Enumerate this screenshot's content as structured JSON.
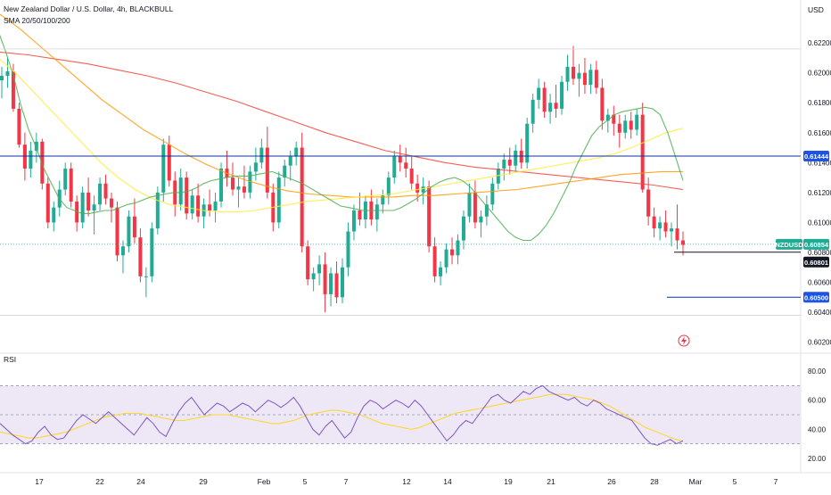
{
  "header": {
    "symbol_title": "New Zealand Dollar / U.S. Dollar, 4h, BLACKBULL",
    "indicator": "SMA 20/50/100/200",
    "currency": "USD",
    "rsi_label": "RSI"
  },
  "colors": {
    "up": "#22ab94",
    "down": "#f23645",
    "sma20": "#4caf50",
    "sma50": "#ffeb3b",
    "sma100": "#ff9800",
    "sma200": "#f44336",
    "hline": "#0c3299",
    "rsi_line": "#7e57c2",
    "rsi_ma": "#fdd835",
    "rsi_band": "#ede7f6",
    "badge_blue": "#1e53e5",
    "badge_green": "#22ab94",
    "badge_dark": "#131722"
  },
  "price_axis": {
    "ticks": [
      "0.62200",
      "0.62000",
      "0.61800",
      "0.61600",
      "0.61400",
      "0.61200",
      "0.61000",
      "0.60800",
      "0.60600",
      "0.60400",
      "0.60200"
    ],
    "badges": [
      {
        "text": "0.61444",
        "style": "blue",
        "value": 0.61444
      },
      {
        "text": "NZDUSD",
        "style": "green",
        "value": 0.60854
      },
      {
        "text": "0.60854",
        "style": "green",
        "value": 0.60854
      },
      {
        "text": "0.60801",
        "style": "dark",
        "value": 0.60801
      },
      {
        "text": "0.60500",
        "style": "blue",
        "value": 0.605
      }
    ]
  },
  "rsi_axis": {
    "ticks": [
      "80.00",
      "60.00",
      "40.00",
      "20.00"
    ]
  },
  "time_axis": {
    "ticks": [
      "17",
      "22",
      "24",
      "29",
      "Feb",
      "5",
      "7",
      "12",
      "14",
      "19",
      "21",
      "26",
      "28",
      "Mar",
      "5",
      "7"
    ]
  },
  "chart_data": {
    "type": "candlestick",
    "symbol": "NZDUSD",
    "timeframe": "4h",
    "price_range": [
      0.6015,
      0.6232
    ],
    "rsi_range": [
      15,
      85
    ],
    "rsi_levels": [
      70,
      50,
      30
    ],
    "horizontal_lines": [
      0.61444,
      0.605,
      0.60801
    ],
    "ohlc": [
      [
        0.6195,
        0.6204,
        0.6183,
        0.6198
      ],
      [
        0.6198,
        0.621,
        0.619,
        0.6201
      ],
      [
        0.6201,
        0.6206,
        0.6174,
        0.6176
      ],
      [
        0.6176,
        0.618,
        0.615,
        0.6152
      ],
      [
        0.6152,
        0.616,
        0.6128,
        0.6136
      ],
      [
        0.6136,
        0.6154,
        0.613,
        0.6148
      ],
      [
        0.6148,
        0.616,
        0.614,
        0.6154
      ],
      [
        0.6154,
        0.6156,
        0.6122,
        0.6126
      ],
      [
        0.6126,
        0.613,
        0.6096,
        0.61
      ],
      [
        0.61,
        0.6114,
        0.6094,
        0.611
      ],
      [
        0.611,
        0.6128,
        0.6104,
        0.6122
      ],
      [
        0.6122,
        0.614,
        0.6118,
        0.6136
      ],
      [
        0.6136,
        0.614,
        0.611,
        0.6114
      ],
      [
        0.6114,
        0.6118,
        0.6094,
        0.61
      ],
      [
        0.61,
        0.6124,
        0.6096,
        0.612
      ],
      [
        0.612,
        0.613,
        0.6104,
        0.6108
      ],
      [
        0.6108,
        0.6118,
        0.6092,
        0.6112
      ],
      [
        0.6112,
        0.613,
        0.6108,
        0.6126
      ],
      [
        0.6126,
        0.6132,
        0.6112,
        0.6116
      ],
      [
        0.6116,
        0.612,
        0.61,
        0.611
      ],
      [
        0.611,
        0.6114,
        0.6074,
        0.6078
      ],
      [
        0.6078,
        0.6088,
        0.6066,
        0.6084
      ],
      [
        0.6084,
        0.6108,
        0.608,
        0.6104
      ],
      [
        0.6104,
        0.6116,
        0.6086,
        0.609
      ],
      [
        0.609,
        0.6096,
        0.606,
        0.6064
      ],
      [
        0.6064,
        0.607,
        0.605,
        0.6064
      ],
      [
        0.6064,
        0.61,
        0.606,
        0.6096
      ],
      [
        0.6096,
        0.6124,
        0.6092,
        0.612
      ],
      [
        0.612,
        0.6156,
        0.6114,
        0.6152
      ],
      [
        0.6152,
        0.6158,
        0.6124,
        0.6128
      ],
      [
        0.6128,
        0.6134,
        0.6104,
        0.6112
      ],
      [
        0.6112,
        0.6136,
        0.6108,
        0.613
      ],
      [
        0.613,
        0.6134,
        0.6102,
        0.6106
      ],
      [
        0.6106,
        0.6122,
        0.6102,
        0.6118
      ],
      [
        0.6118,
        0.6126,
        0.61,
        0.6104
      ],
      [
        0.6104,
        0.6116,
        0.6096,
        0.6112
      ],
      [
        0.6112,
        0.6122,
        0.6104,
        0.6108
      ],
      [
        0.6108,
        0.612,
        0.61,
        0.6114
      ],
      [
        0.6114,
        0.614,
        0.611,
        0.6136
      ],
      [
        0.6136,
        0.6148,
        0.6124,
        0.613
      ],
      [
        0.613,
        0.614,
        0.6118,
        0.6122
      ],
      [
        0.6122,
        0.613,
        0.611,
        0.6124
      ],
      [
        0.6124,
        0.6138,
        0.6116,
        0.612
      ],
      [
        0.612,
        0.6138,
        0.6116,
        0.6134
      ],
      [
        0.6134,
        0.615,
        0.6128,
        0.614
      ],
      [
        0.614,
        0.6156,
        0.6136,
        0.615
      ],
      [
        0.615,
        0.6164,
        0.6116,
        0.612
      ],
      [
        0.612,
        0.6126,
        0.6094,
        0.61
      ],
      [
        0.61,
        0.6134,
        0.6096,
        0.613
      ],
      [
        0.613,
        0.6142,
        0.6124,
        0.6138
      ],
      [
        0.6138,
        0.6148,
        0.6128,
        0.6144
      ],
      [
        0.6144,
        0.6154,
        0.6138,
        0.615
      ],
      [
        0.615,
        0.616,
        0.608,
        0.6084
      ],
      [
        0.6084,
        0.6088,
        0.6058,
        0.6062
      ],
      [
        0.6062,
        0.607,
        0.6054,
        0.6066
      ],
      [
        0.6066,
        0.6078,
        0.6058,
        0.6072
      ],
      [
        0.6072,
        0.608,
        0.604,
        0.6052
      ],
      [
        0.6052,
        0.607,
        0.6044,
        0.6066
      ],
      [
        0.6066,
        0.6074,
        0.6046,
        0.605
      ],
      [
        0.605,
        0.6076,
        0.6046,
        0.607
      ],
      [
        0.607,
        0.61,
        0.6064,
        0.6094
      ],
      [
        0.6094,
        0.6112,
        0.6088,
        0.6108
      ],
      [
        0.6108,
        0.612,
        0.6098,
        0.6102
      ],
      [
        0.6102,
        0.6118,
        0.6096,
        0.6114
      ],
      [
        0.6114,
        0.6122,
        0.6098,
        0.6102
      ],
      [
        0.6102,
        0.6116,
        0.6094,
        0.6112
      ],
      [
        0.6112,
        0.6122,
        0.6106,
        0.6118
      ],
      [
        0.6118,
        0.6134,
        0.6112,
        0.613
      ],
      [
        0.613,
        0.6148,
        0.6126,
        0.6144
      ],
      [
        0.6144,
        0.6152,
        0.6134,
        0.614
      ],
      [
        0.614,
        0.615,
        0.613,
        0.6136
      ],
      [
        0.6136,
        0.6144,
        0.6122,
        0.6126
      ],
      [
        0.6126,
        0.6132,
        0.6114,
        0.612
      ],
      [
        0.612,
        0.613,
        0.6112,
        0.6124
      ],
      [
        0.6124,
        0.6128,
        0.608,
        0.6084
      ],
      [
        0.6084,
        0.609,
        0.606,
        0.6064
      ],
      [
        0.6064,
        0.6074,
        0.6058,
        0.607
      ],
      [
        0.607,
        0.6086,
        0.6066,
        0.6082
      ],
      [
        0.6082,
        0.609,
        0.6072,
        0.6078
      ],
      [
        0.6078,
        0.6092,
        0.6072,
        0.6088
      ],
      [
        0.6088,
        0.6108,
        0.6082,
        0.6104
      ],
      [
        0.6104,
        0.6126,
        0.61,
        0.612
      ],
      [
        0.612,
        0.6128,
        0.6096,
        0.61
      ],
      [
        0.61,
        0.6108,
        0.609,
        0.6104
      ],
      [
        0.6104,
        0.6118,
        0.6098,
        0.6112
      ],
      [
        0.6112,
        0.613,
        0.6108,
        0.6126
      ],
      [
        0.6126,
        0.614,
        0.6122,
        0.6136
      ],
      [
        0.6136,
        0.6146,
        0.6128,
        0.6142
      ],
      [
        0.6142,
        0.615,
        0.6132,
        0.6138
      ],
      [
        0.6138,
        0.6152,
        0.6134,
        0.6148
      ],
      [
        0.6148,
        0.6156,
        0.6136,
        0.614
      ],
      [
        0.614,
        0.617,
        0.6136,
        0.6166
      ],
      [
        0.6166,
        0.6186,
        0.616,
        0.6182
      ],
      [
        0.6182,
        0.6196,
        0.6176,
        0.619
      ],
      [
        0.619,
        0.6194,
        0.617,
        0.6174
      ],
      [
        0.6174,
        0.6186,
        0.6166,
        0.618
      ],
      [
        0.618,
        0.6192,
        0.617,
        0.6176
      ],
      [
        0.6176,
        0.6198,
        0.6172,
        0.6194
      ],
      [
        0.6194,
        0.6212,
        0.6188,
        0.6204
      ],
      [
        0.6204,
        0.6218,
        0.6192,
        0.6196
      ],
      [
        0.6196,
        0.6206,
        0.6184,
        0.62
      ],
      [
        0.62,
        0.621,
        0.6186,
        0.6192
      ],
      [
        0.6192,
        0.6206,
        0.6186,
        0.6202
      ],
      [
        0.6202,
        0.6208,
        0.6186,
        0.619
      ],
      [
        0.619,
        0.6196,
        0.6162,
        0.6168
      ],
      [
        0.6168,
        0.6176,
        0.616,
        0.6172
      ],
      [
        0.6172,
        0.6178,
        0.6158,
        0.6166
      ],
      [
        0.6166,
        0.6172,
        0.615,
        0.616
      ],
      [
        0.616,
        0.6172,
        0.6156,
        0.6168
      ],
      [
        0.6168,
        0.6174,
        0.6156,
        0.6162
      ],
      [
        0.6162,
        0.6176,
        0.6158,
        0.6172
      ],
      [
        0.6172,
        0.618,
        0.612,
        0.6122
      ],
      [
        0.6122,
        0.613,
        0.6098,
        0.6104
      ],
      [
        0.6104,
        0.611,
        0.609,
        0.6096
      ],
      [
        0.6096,
        0.6104,
        0.6088,
        0.61
      ],
      [
        0.61,
        0.6108,
        0.609,
        0.6094
      ],
      [
        0.6094,
        0.61,
        0.6084,
        0.6096
      ],
      [
        0.6096,
        0.6112,
        0.6082,
        0.6088
      ],
      [
        0.6088,
        0.6094,
        0.6078,
        0.6085
      ]
    ],
    "sma20": [
      0.6228,
      0.6214,
      0.6198,
      0.6178,
      0.6162,
      0.615,
      0.6136,
      0.6126,
      0.6116,
      0.611,
      0.6108,
      0.6106,
      0.6106,
      0.6107,
      0.6108,
      0.6108,
      0.611,
      0.6112,
      0.6113,
      0.6115,
      0.6117,
      0.6118,
      0.6119,
      0.612,
      0.612,
      0.6121,
      0.6123,
      0.6126,
      0.6128,
      0.6129,
      0.613,
      0.6131,
      0.6131,
      0.6131,
      0.6132,
      0.6133,
      0.6134,
      0.6132,
      0.613,
      0.6128,
      0.6126,
      0.6123,
      0.612,
      0.6117,
      0.6114,
      0.6111,
      0.611,
      0.6109,
      0.6108,
      0.6108,
      0.6108,
      0.6108,
      0.6108,
      0.611,
      0.6113,
      0.6116,
      0.612,
      0.6124,
      0.6127,
      0.6129,
      0.613,
      0.6128,
      0.6124,
      0.6118,
      0.6112,
      0.6106,
      0.61,
      0.6094,
      0.609,
      0.6088,
      0.6088,
      0.6092,
      0.6098,
      0.6106,
      0.6116,
      0.6126,
      0.6138,
      0.6148,
      0.6158,
      0.6164,
      0.6168,
      0.6172,
      0.6174,
      0.6175,
      0.6176,
      0.6177,
      0.6176,
      0.6172,
      0.616,
      0.6144,
      0.6128
    ],
    "sma50": [
      0.621,
      0.62,
      0.6188,
      0.6176,
      0.6164,
      0.6152,
      0.614,
      0.613,
      0.6122,
      0.6116,
      0.6112,
      0.611,
      0.6108,
      0.6107,
      0.6107,
      0.6108,
      0.611,
      0.6112,
      0.6114,
      0.6115,
      0.6116,
      0.6117,
      0.6118,
      0.6119,
      0.6121,
      0.6123,
      0.6125,
      0.6127,
      0.6129,
      0.6131,
      0.6133,
      0.6135,
      0.6137,
      0.6139,
      0.6141,
      0.6143,
      0.6146,
      0.615,
      0.6155,
      0.616,
      0.6163
    ],
    "sma100": [
      0.624,
      0.623,
      0.6218,
      0.6206,
      0.6194,
      0.6182,
      0.6172,
      0.6162,
      0.6154,
      0.6146,
      0.6139,
      0.6133,
      0.6128,
      0.6124,
      0.6121,
      0.6119,
      0.6118,
      0.6117,
      0.6117,
      0.6117,
      0.6118,
      0.6118,
      0.6119,
      0.612,
      0.6121,
      0.6122,
      0.6124,
      0.6126,
      0.6128,
      0.613,
      0.6132,
      0.6133,
      0.6134,
      0.6134
    ],
    "sma200": [
      0.6214,
      0.6212,
      0.6209,
      0.6206,
      0.6202,
      0.6198,
      0.6193,
      0.6187,
      0.6181,
      0.6174,
      0.6167,
      0.616,
      0.6154,
      0.6148,
      0.6144,
      0.614,
      0.6137,
      0.6135,
      0.6133,
      0.6131,
      0.6129,
      0.6127,
      0.6125,
      0.6122
    ],
    "rsi": [
      44,
      40,
      36,
      33,
      30,
      32,
      38,
      42,
      36,
      33,
      34,
      40,
      46,
      50,
      47,
      44,
      48,
      52,
      48,
      44,
      40,
      36,
      42,
      48,
      44,
      38,
      35,
      44,
      52,
      58,
      62,
      56,
      50,
      54,
      58,
      56,
      52,
      55,
      58,
      56,
      52,
      56,
      60,
      58,
      55,
      58,
      62,
      56,
      48,
      40,
      36,
      42,
      46,
      40,
      34,
      38,
      48,
      56,
      60,
      58,
      54,
      57,
      60,
      58,
      55,
      60,
      56,
      50,
      44,
      38,
      32,
      36,
      42,
      46,
      44,
      50,
      56,
      62,
      64,
      60,
      58,
      62,
      66,
      64,
      68,
      70,
      66,
      64,
      62,
      60,
      62,
      58,
      56,
      60,
      58,
      54,
      52,
      50,
      48,
      46,
      40,
      34,
      30,
      29,
      31,
      33,
      30,
      32
    ],
    "rsi_ma": [
      38,
      37,
      36,
      35,
      34,
      34,
      35,
      36,
      37,
      38,
      40,
      42,
      44,
      46,
      48,
      49,
      50,
      51,
      51,
      51,
      50,
      49,
      48,
      47,
      46,
      46,
      47,
      48,
      49,
      50,
      50,
      50,
      49,
      48,
      47,
      46,
      45,
      44,
      44,
      45,
      46,
      48,
      50,
      51,
      52,
      53,
      53,
      52,
      51,
      50,
      48,
      46,
      44,
      43,
      42,
      41,
      40,
      41,
      43,
      45,
      47,
      49,
      51,
      52,
      53,
      54,
      55,
      56,
      57,
      58,
      59,
      60,
      61,
      62,
      63,
      64,
      64,
      64,
      63,
      62,
      61,
      60,
      58,
      56,
      53,
      50,
      47,
      44,
      41,
      39,
      37,
      35,
      33,
      32
    ]
  }
}
